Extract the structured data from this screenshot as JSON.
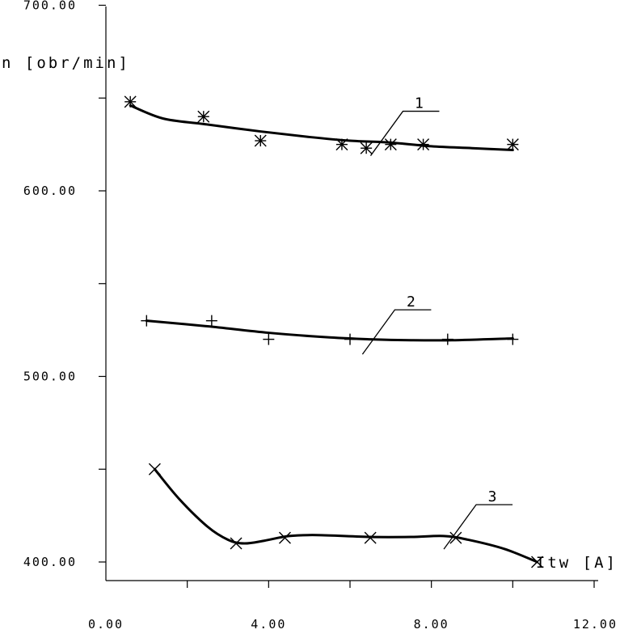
{
  "chart_data": {
    "type": "scatter",
    "xlabel": "Itw [A]",
    "ylabel": "n [obr/min]",
    "xlim": [
      0,
      12
    ],
    "ylim": [
      390,
      700
    ],
    "x_ticks": [
      0,
      4,
      8,
      12
    ],
    "x_tick_labels": [
      "0.00",
      "4.00",
      "8.00",
      "12.00"
    ],
    "y_ticks": [
      400,
      600,
      700
    ],
    "y_tick_labels": [
      "400.00",
      "600.00",
      "700.00"
    ],
    "y_label_500": "500.00",
    "grid": false,
    "series": [
      {
        "name": "1",
        "marker": "asterisk",
        "points": [
          [
            0.6,
            648
          ],
          [
            2.4,
            640
          ],
          [
            3.8,
            627
          ],
          [
            5.8,
            625
          ],
          [
            6.4,
            623
          ],
          [
            7.0,
            625
          ],
          [
            7.8,
            625
          ],
          [
            10.0,
            625
          ]
        ],
        "curve": [
          [
            0.6,
            646
          ],
          [
            1.4,
            639
          ],
          [
            2.4,
            636
          ],
          [
            3.8,
            632
          ],
          [
            5.0,
            629
          ],
          [
            6.0,
            627
          ],
          [
            7.0,
            626
          ],
          [
            8.0,
            624
          ],
          [
            9.0,
            623
          ],
          [
            10.0,
            622
          ]
        ]
      },
      {
        "name": "2",
        "marker": "plus",
        "points": [
          [
            1.0,
            530
          ],
          [
            2.6,
            530
          ],
          [
            4.0,
            520
          ],
          [
            6.0,
            520
          ],
          [
            8.4,
            520
          ],
          [
            10.0,
            520
          ]
        ],
        "curve": [
          [
            1.0,
            530
          ],
          [
            2.5,
            527
          ],
          [
            4.0,
            523.5
          ],
          [
            5.5,
            521
          ],
          [
            6.5,
            520
          ],
          [
            7.5,
            519.5
          ],
          [
            8.5,
            519.5
          ],
          [
            10.0,
            520.5
          ]
        ]
      },
      {
        "name": "3",
        "marker": "x",
        "points": [
          [
            1.2,
            450
          ],
          [
            3.2,
            410
          ],
          [
            4.4,
            413
          ],
          [
            6.5,
            413
          ],
          [
            8.6,
            413
          ],
          [
            10.6,
            400
          ]
        ],
        "curve": [
          [
            1.2,
            450
          ],
          [
            1.8,
            434
          ],
          [
            2.5,
            419
          ],
          [
            3.0,
            412
          ],
          [
            3.4,
            410
          ],
          [
            3.9,
            411.5
          ],
          [
            4.5,
            414
          ],
          [
            5.2,
            414.5
          ],
          [
            6.5,
            413.5
          ],
          [
            7.5,
            413.5
          ],
          [
            8.3,
            414
          ],
          [
            8.9,
            412
          ],
          [
            9.8,
            407
          ],
          [
            10.6,
            400
          ]
        ]
      }
    ],
    "annotations": [
      {
        "text": "1",
        "series": "1",
        "at_x": 7.4,
        "at_y": 632
      },
      {
        "text": "2",
        "series": "2",
        "at_x": 7.2,
        "at_y": 525
      },
      {
        "text": "3",
        "series": "3",
        "at_x": 9.2,
        "at_y": 420
      }
    ]
  }
}
